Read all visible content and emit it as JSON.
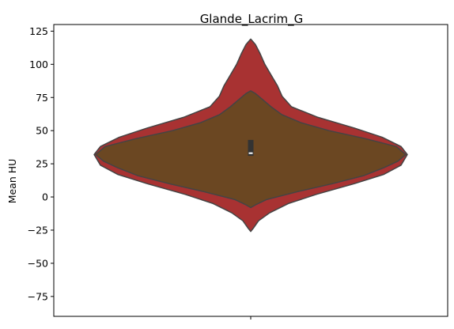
{
  "chart_data": {
    "type": "violin",
    "title": "Glande_Lacrim_G",
    "xlabel": "",
    "ylabel": "Mean HU",
    "ylim": [
      -90,
      130
    ],
    "y_ticks": [
      -75,
      -50,
      -25,
      0,
      25,
      50,
      75,
      100,
      125
    ],
    "x_ticks": [
      ""
    ],
    "grid": false,
    "colors": {
      "outer": "#a83232",
      "inner": "#6b4722",
      "edge": "#444444",
      "box": "#333333",
      "median": "#ffffff"
    },
    "series": [
      {
        "role": "outer",
        "profile": [
          {
            "y": -26,
            "w": 0.0
          },
          {
            "y": -23,
            "w": 0.02
          },
          {
            "y": -18,
            "w": 0.05
          },
          {
            "y": -12,
            "w": 0.12
          },
          {
            "y": -5,
            "w": 0.24
          },
          {
            "y": 2,
            "w": 0.42
          },
          {
            "y": 10,
            "w": 0.66
          },
          {
            "y": 17,
            "w": 0.85
          },
          {
            "y": 24,
            "w": 0.96
          },
          {
            "y": 32,
            "w": 1.0
          },
          {
            "y": 38,
            "w": 0.96
          },
          {
            "y": 45,
            "w": 0.84
          },
          {
            "y": 52,
            "w": 0.66
          },
          {
            "y": 60,
            "w": 0.43
          },
          {
            "y": 68,
            "w": 0.26
          },
          {
            "y": 76,
            "w": 0.2
          },
          {
            "y": 84,
            "w": 0.17
          },
          {
            "y": 92,
            "w": 0.13
          },
          {
            "y": 100,
            "w": 0.09
          },
          {
            "y": 108,
            "w": 0.06
          },
          {
            "y": 115,
            "w": 0.03
          },
          {
            "y": 119,
            "w": 0.0
          }
        ]
      },
      {
        "role": "inner",
        "profile": [
          {
            "y": -8,
            "w": 0.0
          },
          {
            "y": -6,
            "w": 0.03
          },
          {
            "y": -2,
            "w": 0.1
          },
          {
            "y": 4,
            "w": 0.3
          },
          {
            "y": 10,
            "w": 0.52
          },
          {
            "y": 16,
            "w": 0.72
          },
          {
            "y": 22,
            "w": 0.85
          },
          {
            "y": 27,
            "w": 0.94
          },
          {
            "y": 32,
            "w": 0.99
          },
          {
            "y": 38,
            "w": 0.93
          },
          {
            "y": 44,
            "w": 0.73
          },
          {
            "y": 50,
            "w": 0.5
          },
          {
            "y": 56,
            "w": 0.32
          },
          {
            "y": 62,
            "w": 0.2
          },
          {
            "y": 68,
            "w": 0.13
          },
          {
            "y": 74,
            "w": 0.07
          },
          {
            "y": 78,
            "w": 0.03
          },
          {
            "y": 80,
            "w": 0.0
          }
        ]
      }
    ],
    "box": {
      "q1": 31,
      "q3": 43,
      "median": 33
    }
  }
}
